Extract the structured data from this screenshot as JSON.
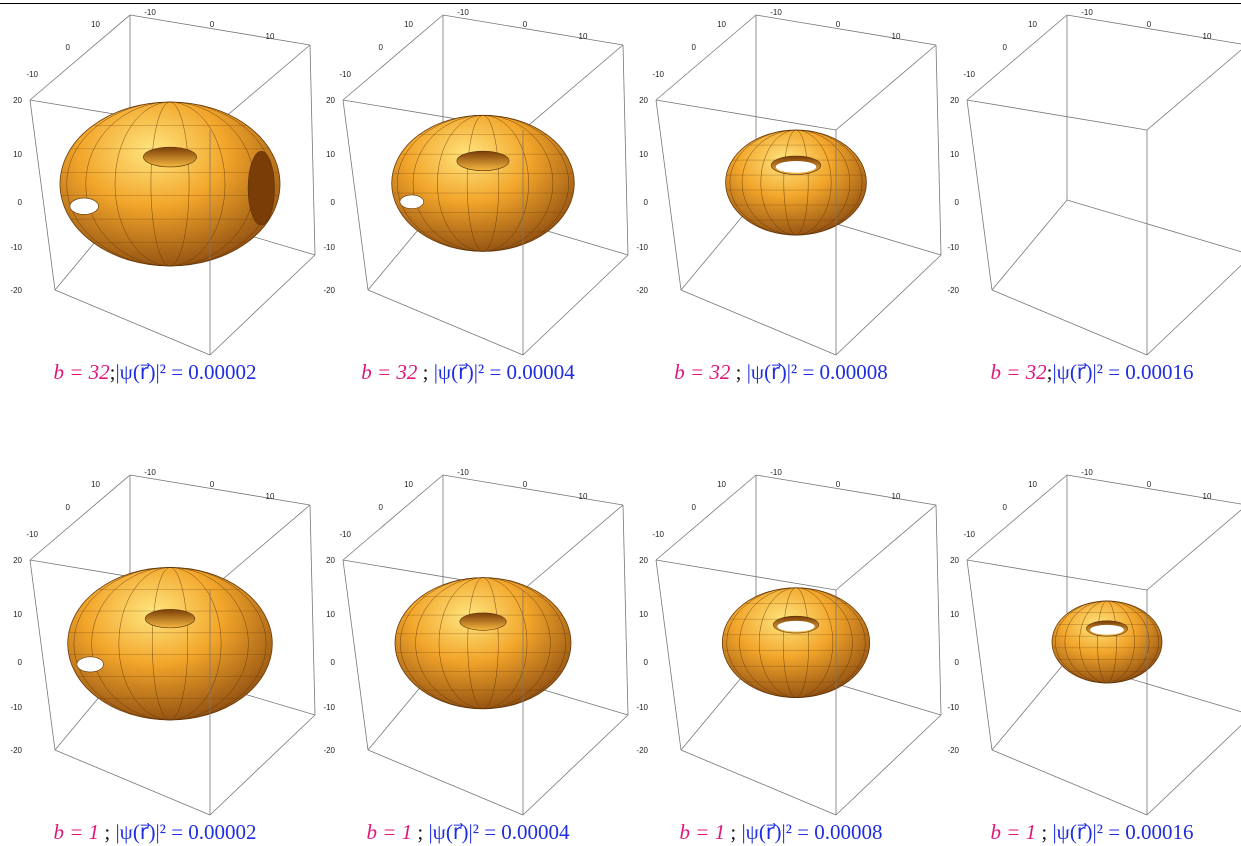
{
  "colors": {
    "b_label": "#e0157a",
    "psi_label": "#1f2ee0",
    "torus_fill": "#f2a52a",
    "torus_dark": "#8a4a10",
    "box_line": "#777777"
  },
  "ticks": {
    "top_back": [
      "10",
      "0",
      "-10"
    ],
    "top_front": [
      "-10",
      "0",
      "10"
    ],
    "vertical": [
      "20",
      "10",
      "0",
      "-10",
      "-20"
    ]
  },
  "rows": [
    {
      "b_text": "b = 32",
      "panels": [
        {
          "sep": ";",
          "psi_text": "|ψ(r⃗)|² = 0.00002",
          "torus_size": 1.0,
          "hole": 0.22,
          "holes": 2
        },
        {
          "sep": " ; ",
          "psi_text": "|ψ(r⃗)|² = 0.00004",
          "torus_size": 0.83,
          "hole": 0.26,
          "holes": 1
        },
        {
          "sep": " ; ",
          "psi_text": "|ψ(r⃗)|² = 0.00008",
          "torus_size": 0.64,
          "hole": 0.32,
          "holes": 0
        },
        {
          "sep": ";",
          "psi_text": "|ψ(r⃗)|² = 0.00016",
          "torus_size": 0,
          "hole": 0,
          "holes": 0
        }
      ]
    },
    {
      "b_text": "b = 1",
      "panels": [
        {
          "sep": " ; ",
          "psi_text": "|ψ(r⃗)|² = 0.00002",
          "torus_size": 0.93,
          "hole": 0.22,
          "holes": 1
        },
        {
          "sep": " ; ",
          "psi_text": "|ψ(r⃗)|² = 0.00004",
          "torus_size": 0.8,
          "hole": 0.24,
          "holes": 0
        },
        {
          "sep": " ; ",
          "psi_text": "|ψ(r⃗)|² = 0.00008",
          "torus_size": 0.67,
          "hole": 0.28,
          "holes": 0
        },
        {
          "sep": " ; ",
          "psi_text": "|ψ(r⃗)|² = 0.00016",
          "torus_size": 0.5,
          "hole": 0.34,
          "holes": 0
        }
      ]
    }
  ]
}
